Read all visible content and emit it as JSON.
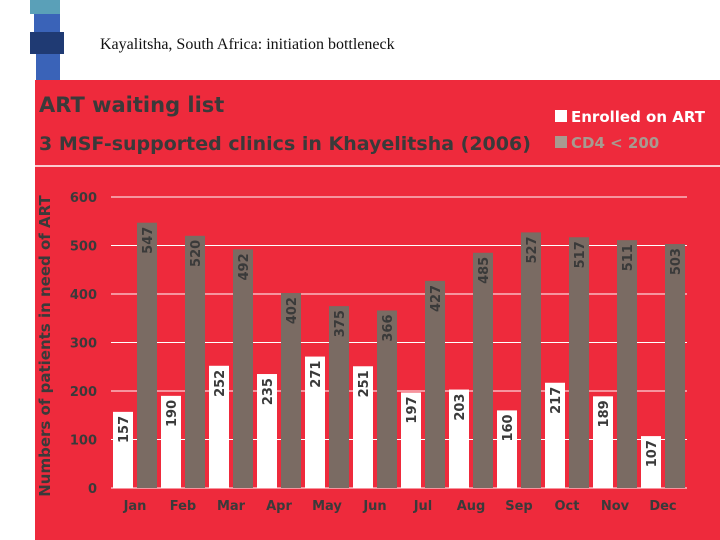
{
  "slide": {
    "title": "Kayalitsha, South Africa: initiation bottleneck"
  },
  "colors": {
    "panel": "#ee2a3c",
    "enrolled": "#ffffff",
    "cd4": "#7a6b63",
    "text": "#3a3a3a",
    "legend_cd4": "#a89a90",
    "deco_blue": "#3a63b8",
    "deco_navy": "#1f3a73",
    "deco_teal": "#5aa0b8"
  },
  "chart_data": {
    "type": "bar",
    "title": "ART waiting list",
    "subtitle": "3 MSF-supported clinics in Khayelitsha (2006)",
    "xlabel": "",
    "ylabel": "Numbers of patients in need of ART",
    "ylim": [
      0,
      600
    ],
    "yticks": [
      "0",
      "100",
      "200",
      "300",
      "400",
      "500",
      "600"
    ],
    "grid": true,
    "legend_position": "top-right",
    "categories": [
      "Jan",
      "Feb",
      "Mar",
      "Apr",
      "May",
      "Jun",
      "Jul",
      "Aug",
      "Sep",
      "Oct",
      "Nov",
      "Dec"
    ],
    "series": [
      {
        "name": "Enrolled on ART",
        "values": [
          157,
          190,
          252,
          235,
          271,
          251,
          197,
          203,
          160,
          217,
          189,
          107
        ]
      },
      {
        "name": "CD4 < 200",
        "values": [
          547,
          520,
          492,
          402,
          375,
          366,
          427,
          485,
          527,
          517,
          511,
          503
        ]
      }
    ]
  }
}
